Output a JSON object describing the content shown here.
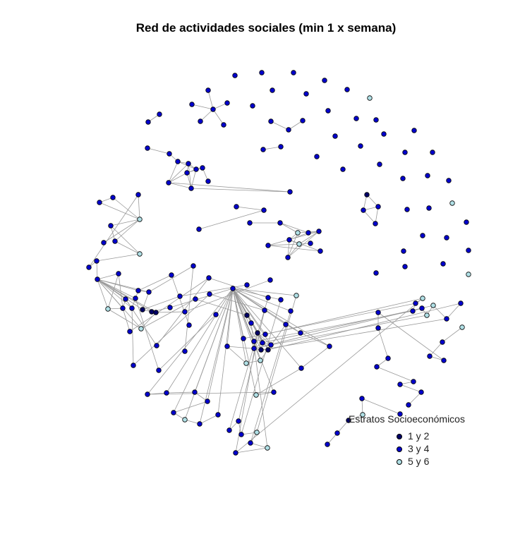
{
  "title": "Red de actividades sociales (min 1 x semana)",
  "legend": {
    "title": "Estratos Socioeconómicos",
    "items": [
      {
        "label": "1 y 2",
        "color": "#000066"
      },
      {
        "label": "3 y 4",
        "color": "#0000CD"
      },
      {
        "label": "5 y 6",
        "color": "#B0E0E6"
      }
    ]
  },
  "edge_color": "#999999"
}
